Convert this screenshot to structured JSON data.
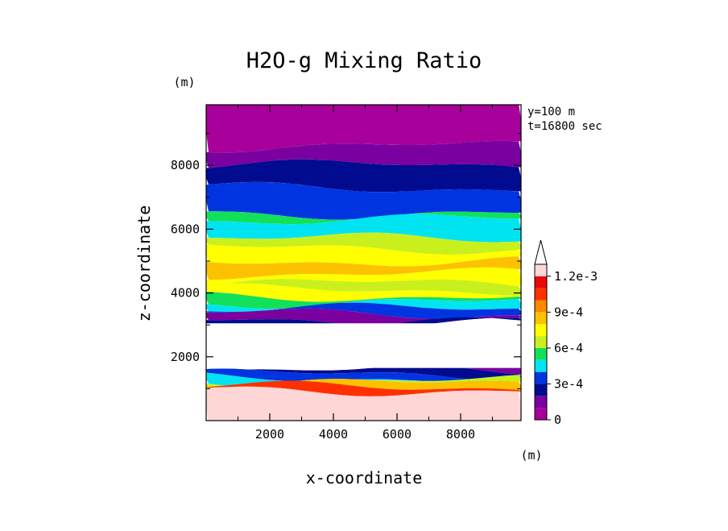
{
  "chart_data": {
    "type": "heatmap",
    "subtype": "filled-contour",
    "title": "H2O-g Mixing Ratio",
    "xlabel": "x-coordinate",
    "ylabel": "z-coordinate",
    "x_unit": "(m)",
    "y_unit": "(m)",
    "annotations": [
      "y=100 m",
      "t=16800 sec"
    ],
    "xlim": [
      0,
      9900
    ],
    "ylim": [
      0,
      9900
    ],
    "x_ticks": [
      2000,
      4000,
      6000,
      8000
    ],
    "y_ticks": [
      2000,
      4000,
      6000,
      8000
    ],
    "x_tick_labels": [
      "2000",
      "4000",
      "6000",
      "8000"
    ],
    "y_tick_labels": [
      "2000",
      "4000",
      "6000",
      "8000"
    ],
    "grid": false,
    "colorbar": {
      "levels": [
        0,
        0.0001,
        0.0002,
        0.0003,
        0.0004,
        0.0005,
        0.0006,
        0.0007,
        0.0008,
        0.0009,
        0.001,
        0.0011,
        0.0012
      ],
      "tick_labels": [
        "0",
        "3e-4",
        "6e-4",
        "9e-4",
        "1.2e-3"
      ],
      "tick_values": [
        0,
        0.0003,
        0.0006,
        0.0009,
        0.0012
      ],
      "colors": [
        "#a8009a",
        "#7a00a0",
        "#000b8f",
        "#0034e0",
        "#00e4f2",
        "#12e05a",
        "#c9f01c",
        "#ffff00",
        "#fcc200",
        "#fb8a00",
        "#ff3000",
        "#e80a0a",
        "#ffd6d6"
      ],
      "extend": "max",
      "extend_color": "#ffffff"
    },
    "bands": [
      {
        "z_top": 9900,
        "z_bottom": 8600,
        "bin": 0
      },
      {
        "z_top": 8600,
        "z_bottom": 8000,
        "bin": 1
      },
      {
        "z_top": 8000,
        "z_bottom": 7300,
        "bin": 2
      },
      {
        "z_top": 7300,
        "z_bottom": 6500,
        "bin": 3
      },
      {
        "z_top": 6500,
        "z_bottom": 6300,
        "bin": 5
      },
      {
        "z_top": 6300,
        "z_bottom": 5700,
        "bin": 4
      },
      {
        "z_top": 5700,
        "z_bottom": 5400,
        "bin": 6
      },
      {
        "z_top": 5400,
        "z_bottom": 5000,
        "bin": 7
      },
      {
        "z_top": 5000,
        "z_bottom": 4600,
        "bin": 8
      },
      {
        "z_top": 4600,
        "z_bottom": 4300,
        "bin": 7
      },
      {
        "z_top": 4300,
        "z_bottom": 4100,
        "bin": 6
      },
      {
        "z_top": 4100,
        "z_bottom": 3900,
        "bin": 7
      },
      {
        "z_top": 3900,
        "z_bottom": 3700,
        "bin": 5
      },
      {
        "z_top": 3700,
        "z_bottom": 3500,
        "bin": 4
      },
      {
        "z_top": 3500,
        "z_bottom": 3350,
        "bin": 3
      },
      {
        "z_top": 3350,
        "z_bottom": 3150,
        "bin": 1
      },
      {
        "z_top": 3150,
        "z_bottom": 3050,
        "bin": 2
      },
      {
        "z_top": 1650,
        "z_bottom": 1550,
        "bin": 1
      },
      {
        "z_top": 1550,
        "z_bottom": 1450,
        "bin": 2
      },
      {
        "z_top": 1450,
        "z_bottom": 1350,
        "bin": 3
      },
      {
        "z_top": 1350,
        "z_bottom": 1250,
        "bin": 4
      },
      {
        "z_top": 1250,
        "z_bottom": 1150,
        "bin": 6
      },
      {
        "z_top": 1150,
        "z_bottom": 1050,
        "bin": 8
      },
      {
        "z_top": 1050,
        "z_bottom": 950,
        "bin": 10
      },
      {
        "z_top": 950,
        "z_bottom": 0,
        "bin": 12
      }
    ],
    "masked_region": {
      "z_top": 3050,
      "z_bottom": 1650
    }
  }
}
